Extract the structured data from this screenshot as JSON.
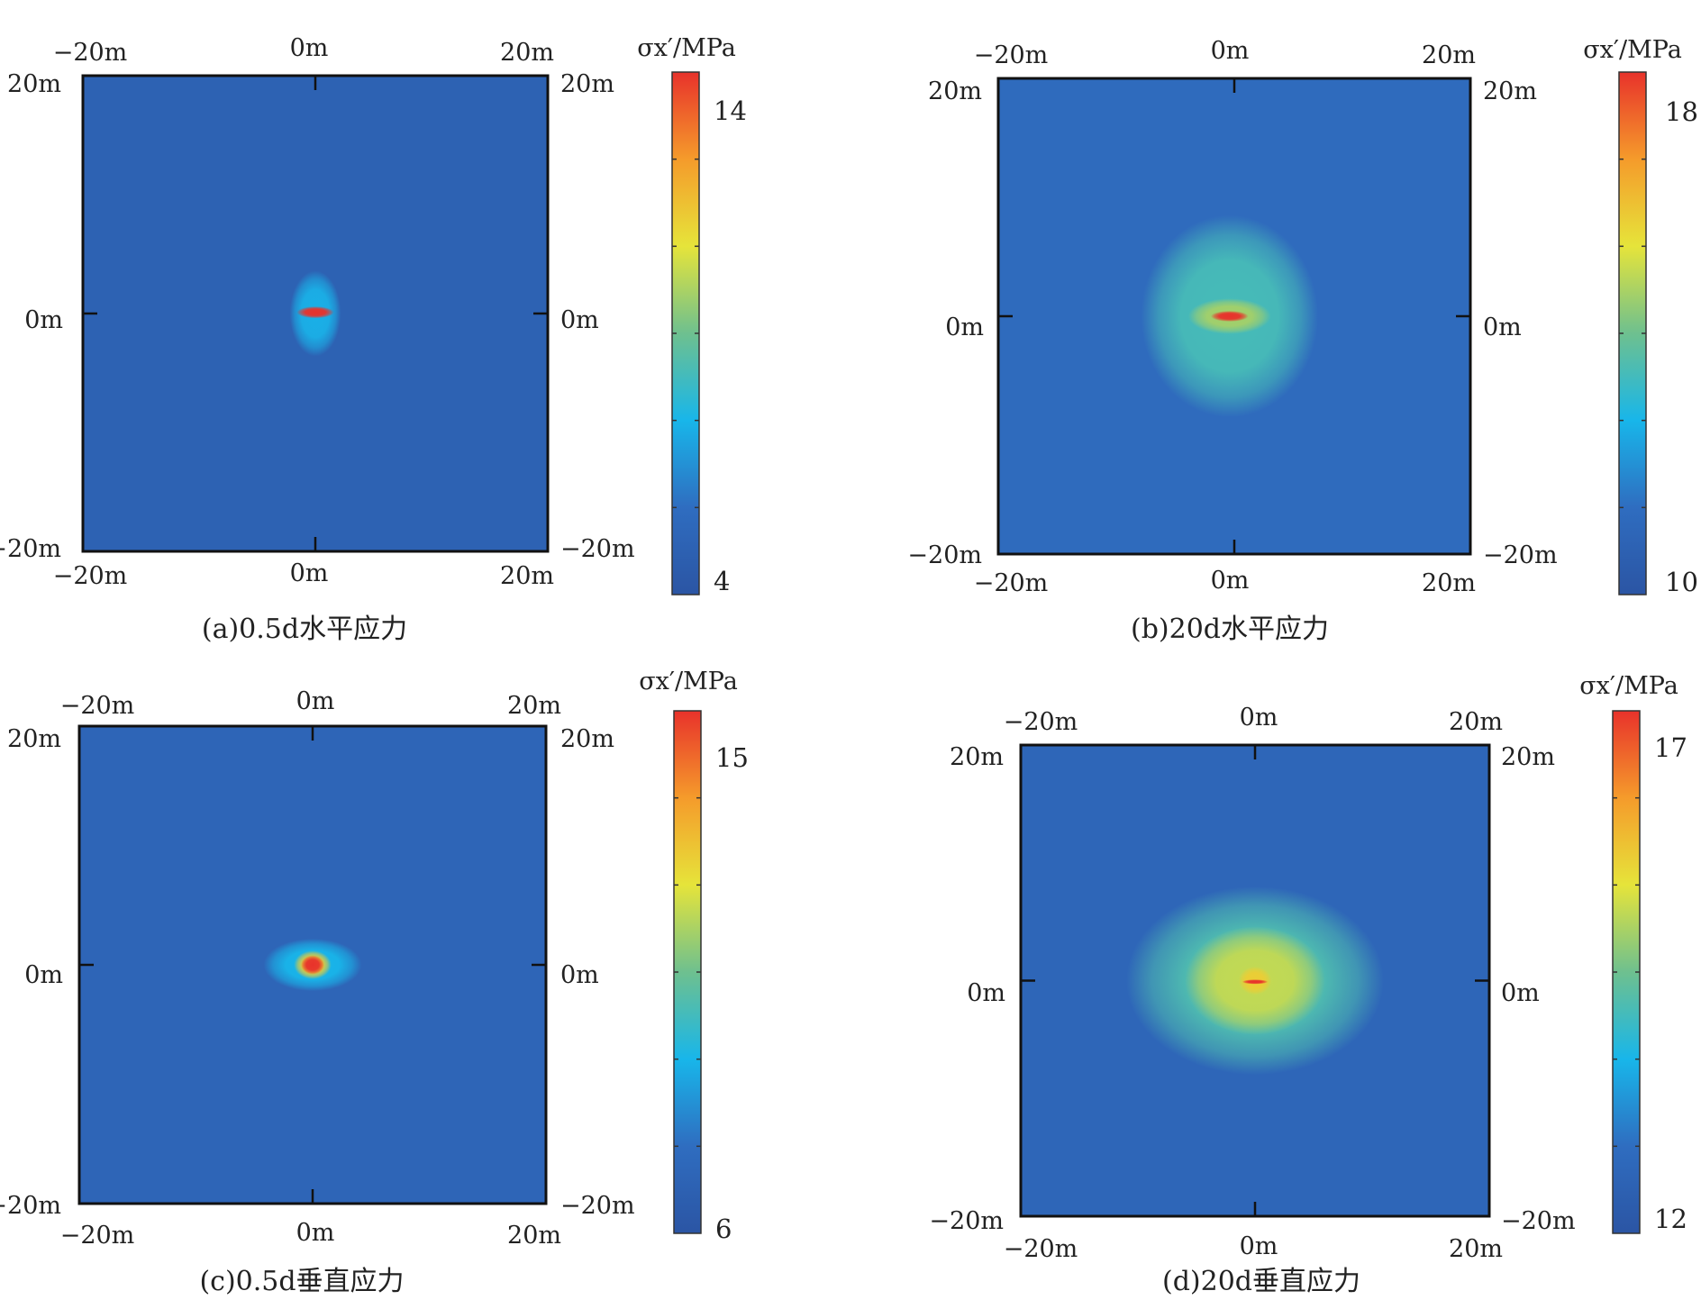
{
  "colors": {
    "background": "#2b59a6",
    "colormap": [
      "#2b55a4",
      "#2f6dc0",
      "#18b6ea",
      "#6ec08f",
      "#e6e43a",
      "#f59b2b",
      "#e8322b"
    ]
  },
  "chart_data": [
    {
      "type": "heatmap",
      "caption": "(a)0.5d水平应力",
      "colorbar": {
        "title": "σx′/MPa",
        "min": 4,
        "max": 14,
        "min_label": "4",
        "max_label": "14"
      },
      "axes": {
        "x_ticks": [
          "−20m",
          "0m",
          "20m"
        ],
        "y_ticks": [
          "20m",
          "0m",
          "−20m"
        ],
        "xlim": [
          -20,
          20
        ],
        "ylim": [
          -20,
          20
        ]
      },
      "field": {
        "background": 4.9,
        "blobs": [
          {
            "cx": 0,
            "cy": 0,
            "rx": 2.2,
            "ry": 3.6,
            "value": 7.2
          },
          {
            "cx": 0,
            "cy": 0.1,
            "rx": 1.6,
            "ry": 0.5,
            "value": 14
          }
        ]
      }
    },
    {
      "type": "heatmap",
      "caption": "(b)20d水平应力",
      "colorbar": {
        "title": "σx′/MPa",
        "min": 10,
        "max": 18,
        "min_label": "10",
        "max_label": "18"
      },
      "axes": {
        "x_ticks": [
          "−20m",
          "0m",
          "20m"
        ],
        "y_ticks": [
          "20m",
          "0m",
          "−20m"
        ],
        "xlim": [
          -20,
          20
        ],
        "ylim": [
          -20,
          20
        ]
      },
      "field": {
        "background": 11.2,
        "blobs": [
          {
            "cx": -0.4,
            "cy": 0,
            "rx": 7.5,
            "ry": 8.5,
            "value": 13.4
          },
          {
            "cx": -0.4,
            "cy": 0,
            "rx": 3.5,
            "ry": 1.5,
            "value": 14.6
          },
          {
            "cx": -0.4,
            "cy": 0,
            "rx": 1.6,
            "ry": 0.45,
            "value": 18
          }
        ]
      }
    },
    {
      "type": "heatmap",
      "caption": "(c)0.5d垂直应力",
      "colorbar": {
        "title": "σx′/MPa",
        "min": 6,
        "max": 15,
        "min_label": "6",
        "max_label": "15"
      },
      "axes": {
        "x_ticks": [
          "−20m",
          "0m",
          "20m"
        ],
        "y_ticks": [
          "20m",
          "0m",
          "−20m"
        ],
        "xlim": [
          -20,
          20
        ],
        "ylim": [
          -20,
          20
        ]
      },
      "field": {
        "background": 7.0,
        "blobs": [
          {
            "cx": 0,
            "cy": 0,
            "rx": 4.2,
            "ry": 2.2,
            "value": 9.0
          },
          {
            "cx": 0,
            "cy": 0,
            "rx": 1.6,
            "ry": 1.2,
            "value": 12.5
          },
          {
            "cx": 0,
            "cy": 0,
            "rx": 1.0,
            "ry": 0.8,
            "value": 15
          }
        ]
      }
    },
    {
      "type": "heatmap",
      "caption": "(d)20d垂直应力",
      "colorbar": {
        "title": "σx′/MPa",
        "min": 12,
        "max": 17,
        "min_label": "12",
        "max_label": "17"
      },
      "axes": {
        "x_ticks": [
          "−20m",
          "0m",
          "20m"
        ],
        "y_ticks": [
          "20m",
          "0m",
          "−20m"
        ],
        "xlim": [
          -20,
          20
        ],
        "ylim": [
          -20,
          20
        ]
      },
      "field": {
        "background": 12.6,
        "blobs": [
          {
            "cx": 0,
            "cy": 0,
            "rx": 11,
            "ry": 8,
            "value": 14.2
          },
          {
            "cx": 0,
            "cy": 0,
            "rx": 6,
            "ry": 4.6,
            "value": 15.1
          },
          {
            "cx": 0,
            "cy": 0,
            "rx": 1.4,
            "ry": 1.2,
            "value": 15.6
          },
          {
            "cx": 0,
            "cy": -0.1,
            "rx": 1.1,
            "ry": 0.2,
            "value": 17
          }
        ]
      }
    }
  ]
}
